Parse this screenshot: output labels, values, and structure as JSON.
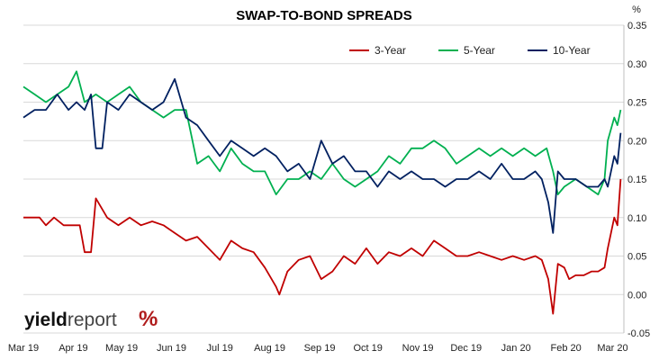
{
  "chart_data": {
    "type": "line",
    "title": "SWAP-TO-BOND SPREADS",
    "y_unit": "%",
    "ylim": [
      -0.05,
      0.35
    ],
    "y_ticks": [
      "-0.05",
      "0.00",
      "0.05",
      "0.10",
      "0.15",
      "0.20",
      "0.25",
      "0.30",
      "0.35"
    ],
    "grid": "horizontal",
    "legend_position": "top-right",
    "x_tick_labels": [
      "Mar 19",
      "Apr 19",
      "May 19",
      "Jun 19",
      "Jul 19",
      "Aug 19",
      "Sep 19",
      "Oct 19",
      "Nov 19",
      "Dec 19",
      "Jan 20",
      "Feb 20",
      "Mar 20"
    ],
    "series": [
      {
        "name": "3-Year",
        "color": "#c00000",
        "points": [
          [
            "2019-03-01",
            0.1
          ],
          [
            "2019-03-06",
            0.1
          ],
          [
            "2019-03-11",
            0.1
          ],
          [
            "2019-03-15",
            0.09
          ],
          [
            "2019-03-20",
            0.1
          ],
          [
            "2019-03-26",
            0.09
          ],
          [
            "2019-04-01",
            0.09
          ],
          [
            "2019-04-05",
            0.09
          ],
          [
            "2019-04-08",
            0.055
          ],
          [
            "2019-04-12",
            0.055
          ],
          [
            "2019-04-15",
            0.125
          ],
          [
            "2019-04-22",
            0.1
          ],
          [
            "2019-04-29",
            0.09
          ],
          [
            "2019-05-06",
            0.1
          ],
          [
            "2019-05-13",
            0.09
          ],
          [
            "2019-05-20",
            0.095
          ],
          [
            "2019-05-27",
            0.09
          ],
          [
            "2019-06-03",
            0.08
          ],
          [
            "2019-06-10",
            0.07
          ],
          [
            "2019-06-17",
            0.075
          ],
          [
            "2019-06-24",
            0.06
          ],
          [
            "2019-07-01",
            0.045
          ],
          [
            "2019-07-08",
            0.07
          ],
          [
            "2019-07-15",
            0.06
          ],
          [
            "2019-07-22",
            0.055
          ],
          [
            "2019-07-29",
            0.035
          ],
          [
            "2019-08-05",
            0.01
          ],
          [
            "2019-08-07",
            0.0
          ],
          [
            "2019-08-12",
            0.03
          ],
          [
            "2019-08-19",
            0.045
          ],
          [
            "2019-08-26",
            0.05
          ],
          [
            "2019-09-02",
            0.02
          ],
          [
            "2019-09-09",
            0.03
          ],
          [
            "2019-09-16",
            0.05
          ],
          [
            "2019-09-23",
            0.04
          ],
          [
            "2019-09-30",
            0.06
          ],
          [
            "2019-10-07",
            0.04
          ],
          [
            "2019-10-14",
            0.055
          ],
          [
            "2019-10-21",
            0.05
          ],
          [
            "2019-10-28",
            0.06
          ],
          [
            "2019-11-04",
            0.05
          ],
          [
            "2019-11-11",
            0.07
          ],
          [
            "2019-11-18",
            0.06
          ],
          [
            "2019-11-25",
            0.05
          ],
          [
            "2019-12-02",
            0.05
          ],
          [
            "2019-12-09",
            0.055
          ],
          [
            "2019-12-16",
            0.05
          ],
          [
            "2019-12-23",
            0.045
          ],
          [
            "2019-12-30",
            0.05
          ],
          [
            "2020-01-06",
            0.045
          ],
          [
            "2020-01-13",
            0.05
          ],
          [
            "2020-01-17",
            0.045
          ],
          [
            "2020-01-21",
            0.02
          ],
          [
            "2020-01-24",
            -0.025
          ],
          [
            "2020-01-27",
            0.04
          ],
          [
            "2020-01-31",
            0.035
          ],
          [
            "2020-02-03",
            0.02
          ],
          [
            "2020-02-07",
            0.025
          ],
          [
            "2020-02-12",
            0.025
          ],
          [
            "2020-02-17",
            0.03
          ],
          [
            "2020-02-21",
            0.03
          ],
          [
            "2020-02-25",
            0.035
          ],
          [
            "2020-02-27",
            0.06
          ],
          [
            "2020-03-02",
            0.1
          ],
          [
            "2020-03-04",
            0.09
          ],
          [
            "2020-03-06",
            0.15
          ]
        ]
      },
      {
        "name": "5-Year",
        "color": "#00b050",
        "points": [
          [
            "2019-03-01",
            0.27
          ],
          [
            "2019-03-08",
            0.26
          ],
          [
            "2019-03-15",
            0.25
          ],
          [
            "2019-03-22",
            0.26
          ],
          [
            "2019-03-29",
            0.27
          ],
          [
            "2019-04-03",
            0.29
          ],
          [
            "2019-04-08",
            0.25
          ],
          [
            "2019-04-15",
            0.26
          ],
          [
            "2019-04-22",
            0.25
          ],
          [
            "2019-04-29",
            0.26
          ],
          [
            "2019-05-06",
            0.27
          ],
          [
            "2019-05-13",
            0.25
          ],
          [
            "2019-05-20",
            0.24
          ],
          [
            "2019-05-27",
            0.23
          ],
          [
            "2019-06-03",
            0.24
          ],
          [
            "2019-06-10",
            0.24
          ],
          [
            "2019-06-14",
            0.2
          ],
          [
            "2019-06-17",
            0.17
          ],
          [
            "2019-06-24",
            0.18
          ],
          [
            "2019-07-01",
            0.16
          ],
          [
            "2019-07-08",
            0.19
          ],
          [
            "2019-07-15",
            0.17
          ],
          [
            "2019-07-22",
            0.16
          ],
          [
            "2019-07-29",
            0.16
          ],
          [
            "2019-08-05",
            0.13
          ],
          [
            "2019-08-12",
            0.15
          ],
          [
            "2019-08-19",
            0.15
          ],
          [
            "2019-08-26",
            0.16
          ],
          [
            "2019-09-02",
            0.15
          ],
          [
            "2019-09-09",
            0.17
          ],
          [
            "2019-09-16",
            0.15
          ],
          [
            "2019-09-23",
            0.14
          ],
          [
            "2019-09-30",
            0.15
          ],
          [
            "2019-10-07",
            0.16
          ],
          [
            "2019-10-14",
            0.18
          ],
          [
            "2019-10-21",
            0.17
          ],
          [
            "2019-10-28",
            0.19
          ],
          [
            "2019-11-04",
            0.19
          ],
          [
            "2019-11-11",
            0.2
          ],
          [
            "2019-11-18",
            0.19
          ],
          [
            "2019-11-25",
            0.17
          ],
          [
            "2019-12-02",
            0.18
          ],
          [
            "2019-12-09",
            0.19
          ],
          [
            "2019-12-16",
            0.18
          ],
          [
            "2019-12-23",
            0.19
          ],
          [
            "2019-12-30",
            0.18
          ],
          [
            "2020-01-06",
            0.19
          ],
          [
            "2020-01-13",
            0.18
          ],
          [
            "2020-01-20",
            0.19
          ],
          [
            "2020-01-24",
            0.16
          ],
          [
            "2020-01-27",
            0.13
          ],
          [
            "2020-01-31",
            0.14
          ],
          [
            "2020-02-07",
            0.15
          ],
          [
            "2020-02-14",
            0.14
          ],
          [
            "2020-02-21",
            0.13
          ],
          [
            "2020-02-25",
            0.15
          ],
          [
            "2020-02-27",
            0.2
          ],
          [
            "2020-03-02",
            0.23
          ],
          [
            "2020-03-04",
            0.22
          ],
          [
            "2020-03-06",
            0.24
          ]
        ]
      },
      {
        "name": "10-Year",
        "color": "#002060",
        "points": [
          [
            "2019-03-01",
            0.23
          ],
          [
            "2019-03-08",
            0.24
          ],
          [
            "2019-03-15",
            0.24
          ],
          [
            "2019-03-22",
            0.26
          ],
          [
            "2019-03-29",
            0.24
          ],
          [
            "2019-04-03",
            0.25
          ],
          [
            "2019-04-08",
            0.24
          ],
          [
            "2019-04-12",
            0.26
          ],
          [
            "2019-04-15",
            0.19
          ],
          [
            "2019-04-19",
            0.19
          ],
          [
            "2019-04-22",
            0.25
          ],
          [
            "2019-04-29",
            0.24
          ],
          [
            "2019-05-06",
            0.26
          ],
          [
            "2019-05-13",
            0.25
          ],
          [
            "2019-05-20",
            0.24
          ],
          [
            "2019-05-27",
            0.25
          ],
          [
            "2019-06-03",
            0.28
          ],
          [
            "2019-06-10",
            0.23
          ],
          [
            "2019-06-17",
            0.22
          ],
          [
            "2019-06-24",
            0.2
          ],
          [
            "2019-07-01",
            0.18
          ],
          [
            "2019-07-08",
            0.2
          ],
          [
            "2019-07-15",
            0.19
          ],
          [
            "2019-07-22",
            0.18
          ],
          [
            "2019-07-29",
            0.19
          ],
          [
            "2019-08-05",
            0.18
          ],
          [
            "2019-08-12",
            0.16
          ],
          [
            "2019-08-19",
            0.17
          ],
          [
            "2019-08-26",
            0.15
          ],
          [
            "2019-09-02",
            0.2
          ],
          [
            "2019-09-09",
            0.17
          ],
          [
            "2019-09-16",
            0.18
          ],
          [
            "2019-09-23",
            0.16
          ],
          [
            "2019-09-30",
            0.16
          ],
          [
            "2019-10-07",
            0.14
          ],
          [
            "2019-10-14",
            0.16
          ],
          [
            "2019-10-21",
            0.15
          ],
          [
            "2019-10-28",
            0.16
          ],
          [
            "2019-11-04",
            0.15
          ],
          [
            "2019-11-11",
            0.15
          ],
          [
            "2019-11-18",
            0.14
          ],
          [
            "2019-11-25",
            0.15
          ],
          [
            "2019-12-02",
            0.15
          ],
          [
            "2019-12-09",
            0.16
          ],
          [
            "2019-12-16",
            0.15
          ],
          [
            "2019-12-23",
            0.17
          ],
          [
            "2019-12-30",
            0.15
          ],
          [
            "2020-01-06",
            0.15
          ],
          [
            "2020-01-13",
            0.16
          ],
          [
            "2020-01-17",
            0.15
          ],
          [
            "2020-01-21",
            0.12
          ],
          [
            "2020-01-24",
            0.08
          ],
          [
            "2020-01-27",
            0.16
          ],
          [
            "2020-01-31",
            0.15
          ],
          [
            "2020-02-07",
            0.15
          ],
          [
            "2020-02-14",
            0.14
          ],
          [
            "2020-02-21",
            0.14
          ],
          [
            "2020-02-25",
            0.15
          ],
          [
            "2020-02-27",
            0.14
          ],
          [
            "2020-03-02",
            0.18
          ],
          [
            "2020-03-04",
            0.17
          ],
          [
            "2020-03-06",
            0.21
          ]
        ]
      }
    ]
  },
  "branding": {
    "logo_bold": "yield",
    "logo_light": "report",
    "logo_symbol": "%"
  }
}
